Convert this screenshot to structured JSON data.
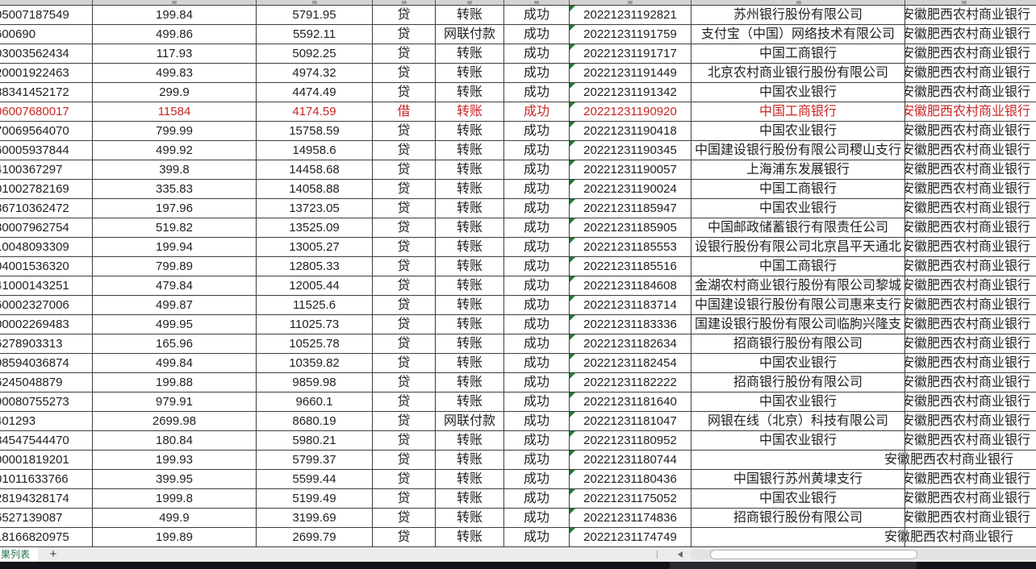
{
  "sheet_tab": {
    "label": "果列表",
    "add_label": "+"
  },
  "colors": {
    "red_text": "#c82525",
    "flag_green": "#217a36",
    "tab_green": "#1e7145",
    "grid_line": "#3e3e3e"
  },
  "table": {
    "holder_bank": "安徽肥西农村商业银行",
    "rows": [
      {
        "account": "05007187549",
        "amount": "199.84",
        "balance": "5791.95",
        "drcr": "贷",
        "type": "转账",
        "status": "成功",
        "time": "20221231192821",
        "bank": "苏州银行股份有限公司",
        "red": false
      },
      {
        "account": "600690",
        "amount": "499.86",
        "balance": "5592.11",
        "drcr": "贷",
        "type": "网联付款",
        "status": "成功",
        "time": "20221231191759",
        "bank": "支付宝（中国）网络技术有限公司",
        "red": false
      },
      {
        "account": "03003562434",
        "amount": "117.93",
        "balance": "5092.25",
        "drcr": "贷",
        "type": "转账",
        "status": "成功",
        "time": "20221231191717",
        "bank": "中国工商银行",
        "red": false
      },
      {
        "account": "20001922463",
        "amount": "499.83",
        "balance": "4974.32",
        "drcr": "贷",
        "type": "转账",
        "status": "成功",
        "time": "20221231191449",
        "bank": "北京农村商业银行股份有限公司",
        "red": false
      },
      {
        "account": "88341452172",
        "amount": "299.9",
        "balance": "4474.49",
        "drcr": "贷",
        "type": "转账",
        "status": "成功",
        "time": "20221231191342",
        "bank": "中国农业银行",
        "red": false
      },
      {
        "account": "06007680017",
        "amount": "11584",
        "balance": "4174.59",
        "drcr": "借",
        "type": "转账",
        "status": "成功",
        "time": "20221231190920",
        "bank": "中国工商银行",
        "red": true
      },
      {
        "account": "70069564070",
        "amount": "799.99",
        "balance": "15758.59",
        "drcr": "贷",
        "type": "转账",
        "status": "成功",
        "time": "20221231190418",
        "bank": "中国农业银行",
        "red": false
      },
      {
        "account": "60005937844",
        "amount": "499.92",
        "balance": "14958.6",
        "drcr": "贷",
        "type": "转账",
        "status": "成功",
        "time": "20221231190345",
        "bank": "中国建设银行股份有限公司稷山支行",
        "red": false
      },
      {
        "account": "4100367297",
        "amount": "399.8",
        "balance": "14458.68",
        "drcr": "贷",
        "type": "转账",
        "status": "成功",
        "time": "20221231190057",
        "bank": "上海浦东发展银行",
        "red": false
      },
      {
        "account": "01002782169",
        "amount": "335.83",
        "balance": "14058.88",
        "drcr": "贷",
        "type": "转账",
        "status": "成功",
        "time": "20221231190024",
        "bank": "中国工商银行",
        "red": false
      },
      {
        "account": "86710362472",
        "amount": "197.96",
        "balance": "13723.05",
        "drcr": "贷",
        "type": "转账",
        "status": "成功",
        "time": "20221231185947",
        "bank": "中国农业银行",
        "red": false
      },
      {
        "account": "80007962754",
        "amount": "519.82",
        "balance": "13525.09",
        "drcr": "贷",
        "type": "转账",
        "status": "成功",
        "time": "20221231185905",
        "bank": "中国邮政储蓄银行有限责任公司",
        "red": false
      },
      {
        "account": "10048093309",
        "amount": "199.94",
        "balance": "13005.27",
        "drcr": "贷",
        "type": "转账",
        "status": "成功",
        "time": "20221231185553",
        "bank": "设银行股份有限公司北京昌平天通北",
        "red": false
      },
      {
        "account": "04001536320",
        "amount": "799.89",
        "balance": "12805.33",
        "drcr": "贷",
        "type": "转账",
        "status": "成功",
        "time": "20221231185516",
        "bank": "中国工商银行",
        "red": false
      },
      {
        "account": "41000143251",
        "amount": "479.84",
        "balance": "12005.44",
        "drcr": "贷",
        "type": "转账",
        "status": "成功",
        "time": "20221231184608",
        "bank": "金湖农村商业银行股份有限公司黎城",
        "red": false
      },
      {
        "account": "60002327006",
        "amount": "499.87",
        "balance": "11525.6",
        "drcr": "贷",
        "type": "转账",
        "status": "成功",
        "time": "20221231183714",
        "bank": "中国建设银行股份有限公司惠来支行",
        "red": false
      },
      {
        "account": "00002269483",
        "amount": "499.95",
        "balance": "11025.73",
        "drcr": "贷",
        "type": "转账",
        "status": "成功",
        "time": "20221231183336",
        "bank": "国建设银行股份有限公司临朐兴隆支",
        "red": false
      },
      {
        "account": "6278903313",
        "amount": "165.96",
        "balance": "10525.78",
        "drcr": "贷",
        "type": "转账",
        "status": "成功",
        "time": "20221231182634",
        "bank": "招商银行股份有限公司",
        "red": false
      },
      {
        "account": "98594036874",
        "amount": "499.84",
        "balance": "10359.82",
        "drcr": "贷",
        "type": "转账",
        "status": "成功",
        "time": "20221231182454",
        "bank": "中国农业银行",
        "red": false
      },
      {
        "account": "6245048879",
        "amount": "199.88",
        "balance": "9859.98",
        "drcr": "贷",
        "type": "转账",
        "status": "成功",
        "time": "20221231182222",
        "bank": "招商银行股份有限公司",
        "red": false
      },
      {
        "account": "90080755273",
        "amount": "979.91",
        "balance": "9660.1",
        "drcr": "贷",
        "type": "转账",
        "status": "成功",
        "time": "20221231181640",
        "bank": "中国农业银行",
        "red": false
      },
      {
        "account": "401293",
        "amount": "2699.98",
        "balance": "8680.19",
        "drcr": "贷",
        "type": "网联付款",
        "status": "成功",
        "time": "20221231181047",
        "bank": "网银在线（北京）科技有限公司",
        "red": false
      },
      {
        "account": "84547544470",
        "amount": "180.84",
        "balance": "5980.21",
        "drcr": "贷",
        "type": "转账",
        "status": "成功",
        "time": "20221231180952",
        "bank": "中国农业银行",
        "red": false
      },
      {
        "account": "00001819201",
        "amount": "199.93",
        "balance": "5799.37",
        "drcr": "贷",
        "type": "转账",
        "status": "成功",
        "time": "20221231180744",
        "bank": "",
        "red": false
      },
      {
        "account": "01011633766",
        "amount": "399.95",
        "balance": "5599.44",
        "drcr": "贷",
        "type": "转账",
        "status": "成功",
        "time": "20221231180436",
        "bank": "中国银行苏州黄埭支行",
        "red": false
      },
      {
        "account": "28194328174",
        "amount": "1999.8",
        "balance": "5199.49",
        "drcr": "贷",
        "type": "转账",
        "status": "成功",
        "time": "20221231175052",
        "bank": "中国农业银行",
        "red": false
      },
      {
        "account": "6527139087",
        "amount": "499.9",
        "balance": "3199.69",
        "drcr": "贷",
        "type": "转账",
        "status": "成功",
        "time": "20221231174836",
        "bank": "招商银行股份有限公司",
        "red": false
      },
      {
        "account": "18166820975",
        "amount": "199.89",
        "balance": "2699.79",
        "drcr": "贷",
        "type": "转账",
        "status": "成功",
        "time": "20221231174749",
        "bank": "",
        "red": false
      }
    ]
  }
}
